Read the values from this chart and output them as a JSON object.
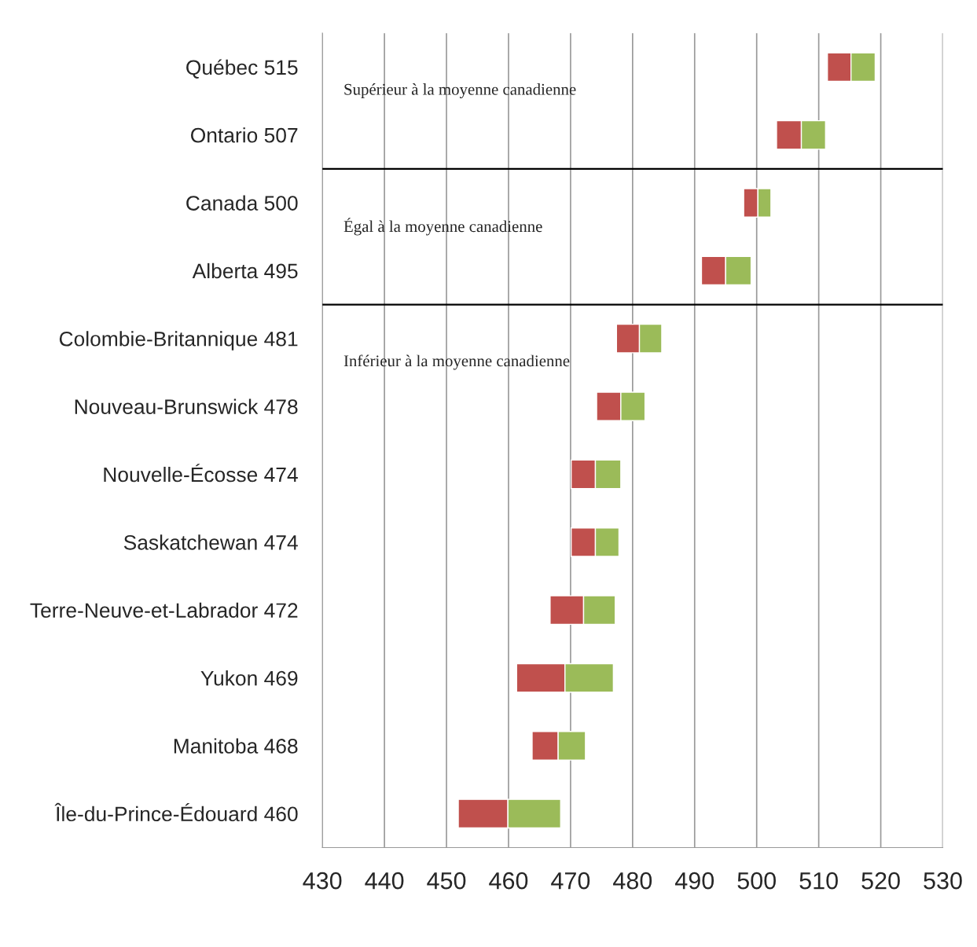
{
  "chart_data": {
    "type": "bar",
    "orientation": "horizontal",
    "categories": [
      "Québec 515",
      "Ontario 507",
      "Canada 500",
      "Alberta 495",
      "Colombie-Britannique 481",
      "Nouveau-Brunswick 478",
      "Nouvelle-Écosse 474",
      "Saskatchewan 474",
      "Terre-Neuve-et-Labrador 472",
      "Yukon 469",
      "Manitoba 468",
      "Île-du-Prince-Édouard 460"
    ],
    "series": [
      {
        "color": "#c0504d",
        "base": [
          511.4,
          503.2,
          497.9,
          491.1,
          477.4,
          474.2,
          470.1,
          470.1,
          466.7,
          461.3,
          463.8,
          451.9
        ],
        "values": [
          3.8,
          4.0,
          2.3,
          3.9,
          3.7,
          3.9,
          3.9,
          3.9,
          5.4,
          7.8,
          4.2,
          8.0
        ]
      },
      {
        "color": "#9bbb59",
        "base": [
          515.2,
          507.2,
          500.2,
          495.0,
          481.1,
          478.1,
          474.0,
          474.0,
          472.1,
          469.1,
          468.0,
          459.9
        ],
        "values": [
          3.9,
          3.9,
          2.1,
          4.1,
          3.6,
          3.9,
          4.1,
          3.8,
          5.1,
          7.8,
          4.4,
          8.5
        ]
      }
    ],
    "xlim": [
      430,
      530
    ],
    "xticks": [
      430,
      440,
      450,
      460,
      470,
      480,
      490,
      500,
      510,
      520,
      530
    ],
    "grid": "x",
    "annotations": [
      "Supérieur à la moyenne canadienne",
      "Égal à la moyenne canadienne",
      "Inférieur à la moyenne canadienne"
    ]
  }
}
